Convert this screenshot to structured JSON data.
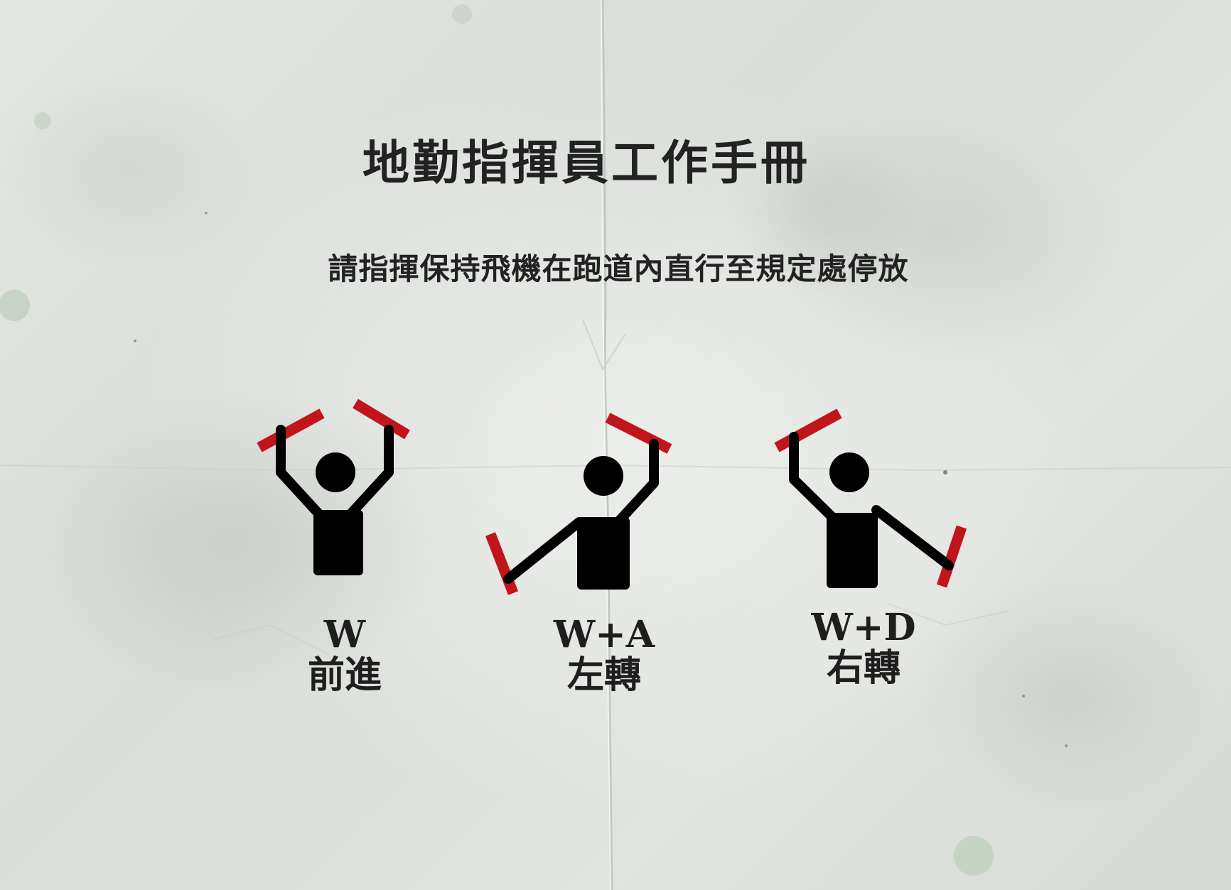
{
  "manual": {
    "title": "地勤指揮員工作手冊",
    "instruction": "請指揮保持飛機在跑道內直行至規定處停放"
  },
  "signals": [
    {
      "key": "W",
      "action": "前進"
    },
    {
      "key": "W+A",
      "action": "左轉"
    },
    {
      "key": "W+D",
      "action": "右轉"
    }
  ],
  "colors": {
    "baton": "#c0151b",
    "figure": "#000000",
    "text": "#222222"
  }
}
